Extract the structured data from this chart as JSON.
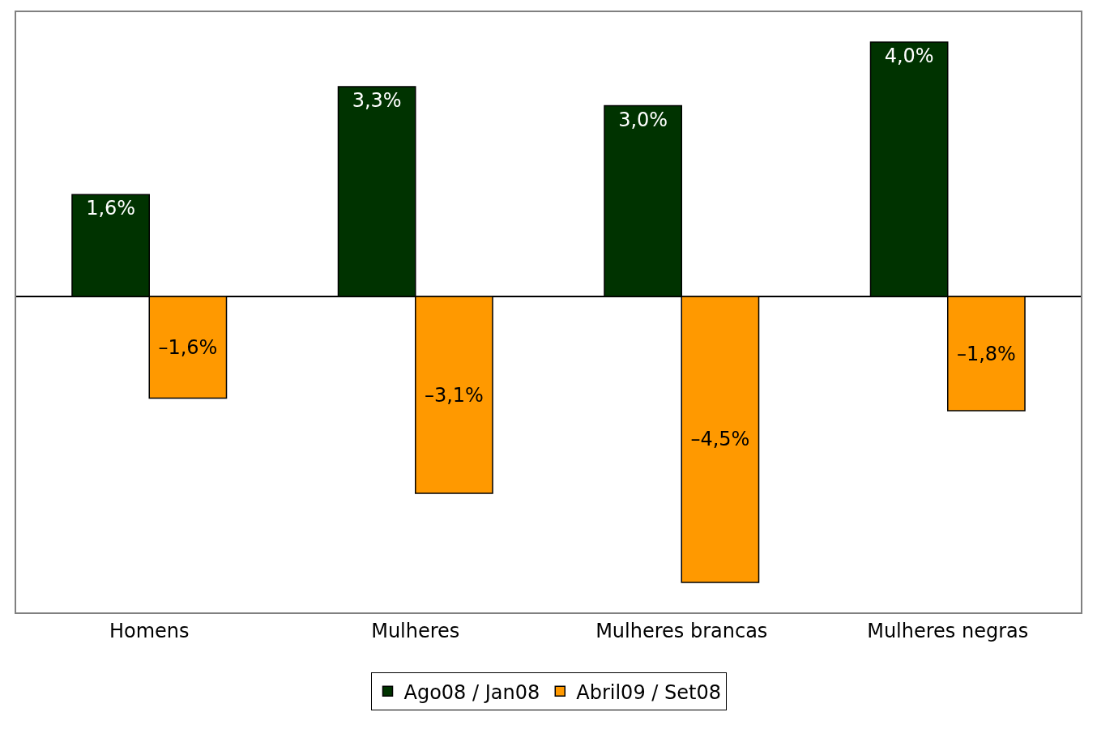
{
  "chart_data": {
    "type": "bar",
    "categories": [
      "Homens",
      "Mulheres",
      "Mulheres brancas",
      "Mulheres negras"
    ],
    "series": [
      {
        "name": "Ago08 / Jan08",
        "color": "#003300",
        "values": [
          1.6,
          3.3,
          3.0,
          4.0
        ],
        "value_labels": [
          "1,6%",
          "3,3%",
          "3,0%",
          "4,0%"
        ]
      },
      {
        "name": "Abril09 / Set08",
        "color": "#ff9900",
        "values": [
          -1.6,
          -3.1,
          -4.5,
          -1.8
        ],
        "value_labels": [
          "–1,6%",
          "–3,1%",
          "–4,5%",
          "–1,8%"
        ]
      }
    ],
    "legend": "bottom"
  }
}
